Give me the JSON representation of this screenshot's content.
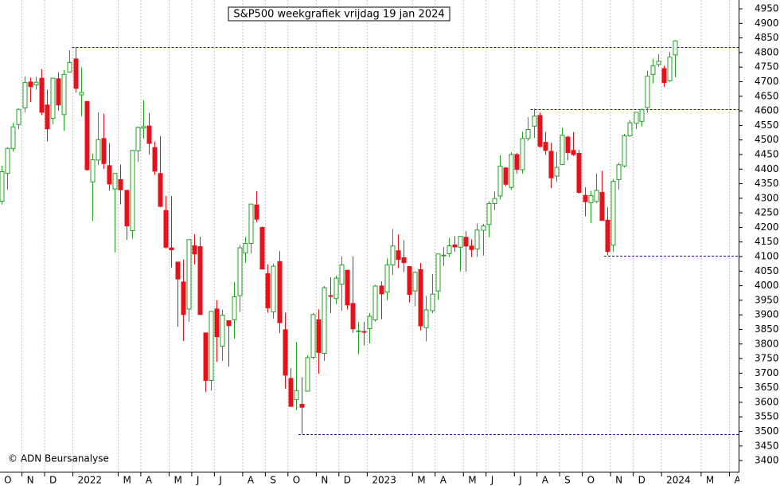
{
  "chart_data": {
    "type": "candlestick",
    "title": "S&P500 weekgrafiek vrijdag 19 jan 2024",
    "credit": "© ADN Beursanalyse",
    "up_color": "#22a022",
    "down_color": "#e8101a",
    "level_color": "#1a1aa0",
    "grid": true,
    "open": [
      4290,
      4385,
      4471,
      4553,
      4610,
      4699,
      4689,
      4712,
      4620,
      4574,
      4710,
      4587,
      4733,
      4778,
      4655,
      4632,
      4356,
      4431,
      4505,
      4412,
      4332,
      4364,
      4327,
      4189,
      4463,
      4541,
      4548,
      4474,
      4385,
      4258,
      4130,
      4081,
      4013,
      3920,
      4137,
      4134,
      3838,
      3675,
      3920,
      3792,
      3880,
      3883,
      3966,
      4112,
      4145,
      4277,
      4200,
      4041,
      3910,
      4083,
      3849,
      3682,
      3609,
      3593,
      3638,
      3754,
      3883,
      3768,
      3966,
      3956,
      4005,
      4053,
      3939,
      3844,
      3843,
      3853,
      3883,
      3999,
      3978,
      4071,
      4120,
      4096,
      4066,
      3982,
      4055,
      3856,
      3914,
      3982,
      4103,
      4110,
      4140,
      4132,
      4166,
      4136,
      4126,
      4190,
      4210,
      4282,
      4308,
      4404,
      4337,
      4450,
      4398,
      4505,
      4547,
      4584,
      4492,
      4461,
      4376,
      4416,
      4510,
      4464,
      4454,
      4310,
      4285,
      4289,
      4320,
      4225,
      4139,
      4364,
      4411,
      4514,
      4557,
      4564,
      4611,
      4725,
      4759,
      4745,
      4703,
      4792
    ],
    "high": [
      4412,
      4475,
      4559,
      4608,
      4718,
      4714,
      4717,
      4743,
      4672,
      4713,
      4731,
      4740,
      4808,
      4819,
      4749,
      4632,
      4453,
      4595,
      4590,
      4490,
      4385,
      4416,
      4329,
      4465,
      4546,
      4637,
      4593,
      4494,
      4513,
      4308,
      4308,
      4081,
      4090,
      4158,
      4177,
      4168,
      3838,
      3913,
      3950,
      3918,
      3880,
      4013,
      4140,
      4167,
      4280,
      4325,
      4203,
      4073,
      4076,
      4119,
      3907,
      3717,
      3807,
      3686,
      3762,
      3906,
      3919,
      3999,
      4029,
      4034,
      4101,
      4053,
      4101,
      3876,
      3876,
      3906,
      4003,
      4015,
      4094,
      4195,
      4176,
      4156,
      4066,
      4049,
      4078,
      3965,
      4040,
      4110,
      4133,
      4164,
      4170,
      4170,
      4187,
      4159,
      4213,
      4212,
      4290,
      4322,
      4448,
      4407,
      4458,
      4456,
      4528,
      4578,
      4607,
      4594,
      4528,
      4490,
      4458,
      4541,
      4514,
      4527,
      4466,
      4338,
      4326,
      4385,
      4394,
      4268,
      4366,
      4422,
      4521,
      4568,
      4596,
      4609,
      4738,
      4778,
      4794,
      4755,
      4802,
      4842
    ],
    "low": [
      4278,
      4329,
      4460,
      4537,
      4595,
      4630,
      4672,
      4585,
      4495,
      4554,
      4600,
      4531,
      4733,
      4662,
      4582,
      4395,
      4222,
      4414,
      4401,
      4327,
      4114,
      4279,
      4157,
      4162,
      4425,
      4505,
      4450,
      4381,
      4269,
      4128,
      4062,
      3859,
      3810,
      3876,
      4073,
      3900,
      3636,
      3640,
      3739,
      3742,
      3722,
      3818,
      3910,
      4079,
      4111,
      4218,
      4057,
      3907,
      3886,
      3837,
      3647,
      3584,
      3573,
      3491,
      3638,
      3748,
      3698,
      3742,
      3906,
      3938,
      3913,
      3918,
      3838,
      3765,
      3795,
      3802,
      3877,
      3885,
      3950,
      4037,
      4060,
      4047,
      3943,
      3929,
      3847,
      3809,
      3906,
      3951,
      4069,
      4098,
      4116,
      4049,
      4048,
      4098,
      4099,
      4103,
      4166,
      4260,
      4296,
      4341,
      4328,
      4384,
      4385,
      4497,
      4507,
      4474,
      4449,
      4335,
      4356,
      4414,
      4430,
      4445,
      4316,
      4238,
      4216,
      4283,
      4223,
      4104,
      4116,
      4329,
      4405,
      4511,
      4537,
      4546,
      4593,
      4694,
      4751,
      4682,
      4699,
      4715
    ],
    "close": [
      4391,
      4471,
      4545,
      4605,
      4697,
      4683,
      4698,
      4595,
      4538,
      4712,
      4620,
      4725,
      4766,
      4677,
      4663,
      4398,
      4432,
      4501,
      4419,
      4349,
      4385,
      4329,
      4205,
      4464,
      4543,
      4546,
      4488,
      4393,
      4272,
      4132,
      4123,
      4023,
      3901,
      4158,
      4109,
      3901,
      3675,
      3912,
      3825,
      3899,
      3863,
      3962,
      4130,
      4145,
      4280,
      4228,
      4057,
      3924,
      4067,
      3873,
      3693,
      3586,
      3640,
      3583,
      3753,
      3901,
      3771,
      3993,
      3965,
      4026,
      4071,
      3934,
      3852,
      3845,
      3840,
      3895,
      3999,
      3972,
      4071,
      4136,
      4090,
      4079,
      3970,
      4046,
      3862,
      3917,
      3971,
      4109,
      4105,
      4137,
      4133,
      4169,
      4136,
      4124,
      4191,
      4205,
      4282,
      4299,
      4410,
      4348,
      4450,
      4399,
      4505,
      4536,
      4582,
      4478,
      4464,
      4370,
      4406,
      4516,
      4457,
      4450,
      4320,
      4288,
      4309,
      4327,
      4224,
      4117,
      4358,
      4415,
      4514,
      4559,
      4595,
      4604,
      4719,
      4754,
      4770,
      4697,
      4784,
      4840
    ],
    "levels": [
      4819,
      4607,
      4104,
      3491
    ],
    "xlim": [
      -0.3,
      130.2
    ],
    "xticks": [
      {
        "value": 0,
        "label": "O"
      },
      {
        "value": 4,
        "label": "N"
      },
      {
        "value": 8,
        "label": "D"
      },
      {
        "value": 13,
        "label": "2022"
      },
      {
        "value": 21,
        "label": "M"
      },
      {
        "value": 25,
        "label": "A"
      },
      {
        "value": 30,
        "label": "M"
      },
      {
        "value": 34,
        "label": "J"
      },
      {
        "value": 38,
        "label": "J"
      },
      {
        "value": 43,
        "label": "A"
      },
      {
        "value": 47,
        "label": "S"
      },
      {
        "value": 51,
        "label": "O"
      },
      {
        "value": 56,
        "label": "N"
      },
      {
        "value": 60,
        "label": "D"
      },
      {
        "value": 65,
        "label": "2023"
      },
      {
        "value": 73,
        "label": "M"
      },
      {
        "value": 77,
        "label": "A"
      },
      {
        "value": 82,
        "label": "M"
      },
      {
        "value": 86,
        "label": "J"
      },
      {
        "value": 91,
        "label": "J"
      },
      {
        "value": 95,
        "label": "A"
      },
      {
        "value": 99,
        "label": "S"
      },
      {
        "value": 103,
        "label": "O"
      },
      {
        "value": 108,
        "label": "N"
      },
      {
        "value": 112,
        "label": "D"
      },
      {
        "value": 117,
        "label": "2024"
      },
      {
        "value": 124,
        "label": "M"
      },
      {
        "value": 129,
        "label": "A"
      }
    ],
    "ylim": [
      3362,
      4972
    ],
    "yticks": [
      3400,
      3450,
      3500,
      3550,
      3600,
      3650,
      3700,
      3750,
      3800,
      3850,
      3900,
      3950,
      4000,
      4050,
      4100,
      4150,
      4200,
      4250,
      4300,
      4350,
      4400,
      4450,
      4500,
      4550,
      4600,
      4650,
      4700,
      4750,
      4800,
      4850,
      4900,
      4950
    ]
  }
}
